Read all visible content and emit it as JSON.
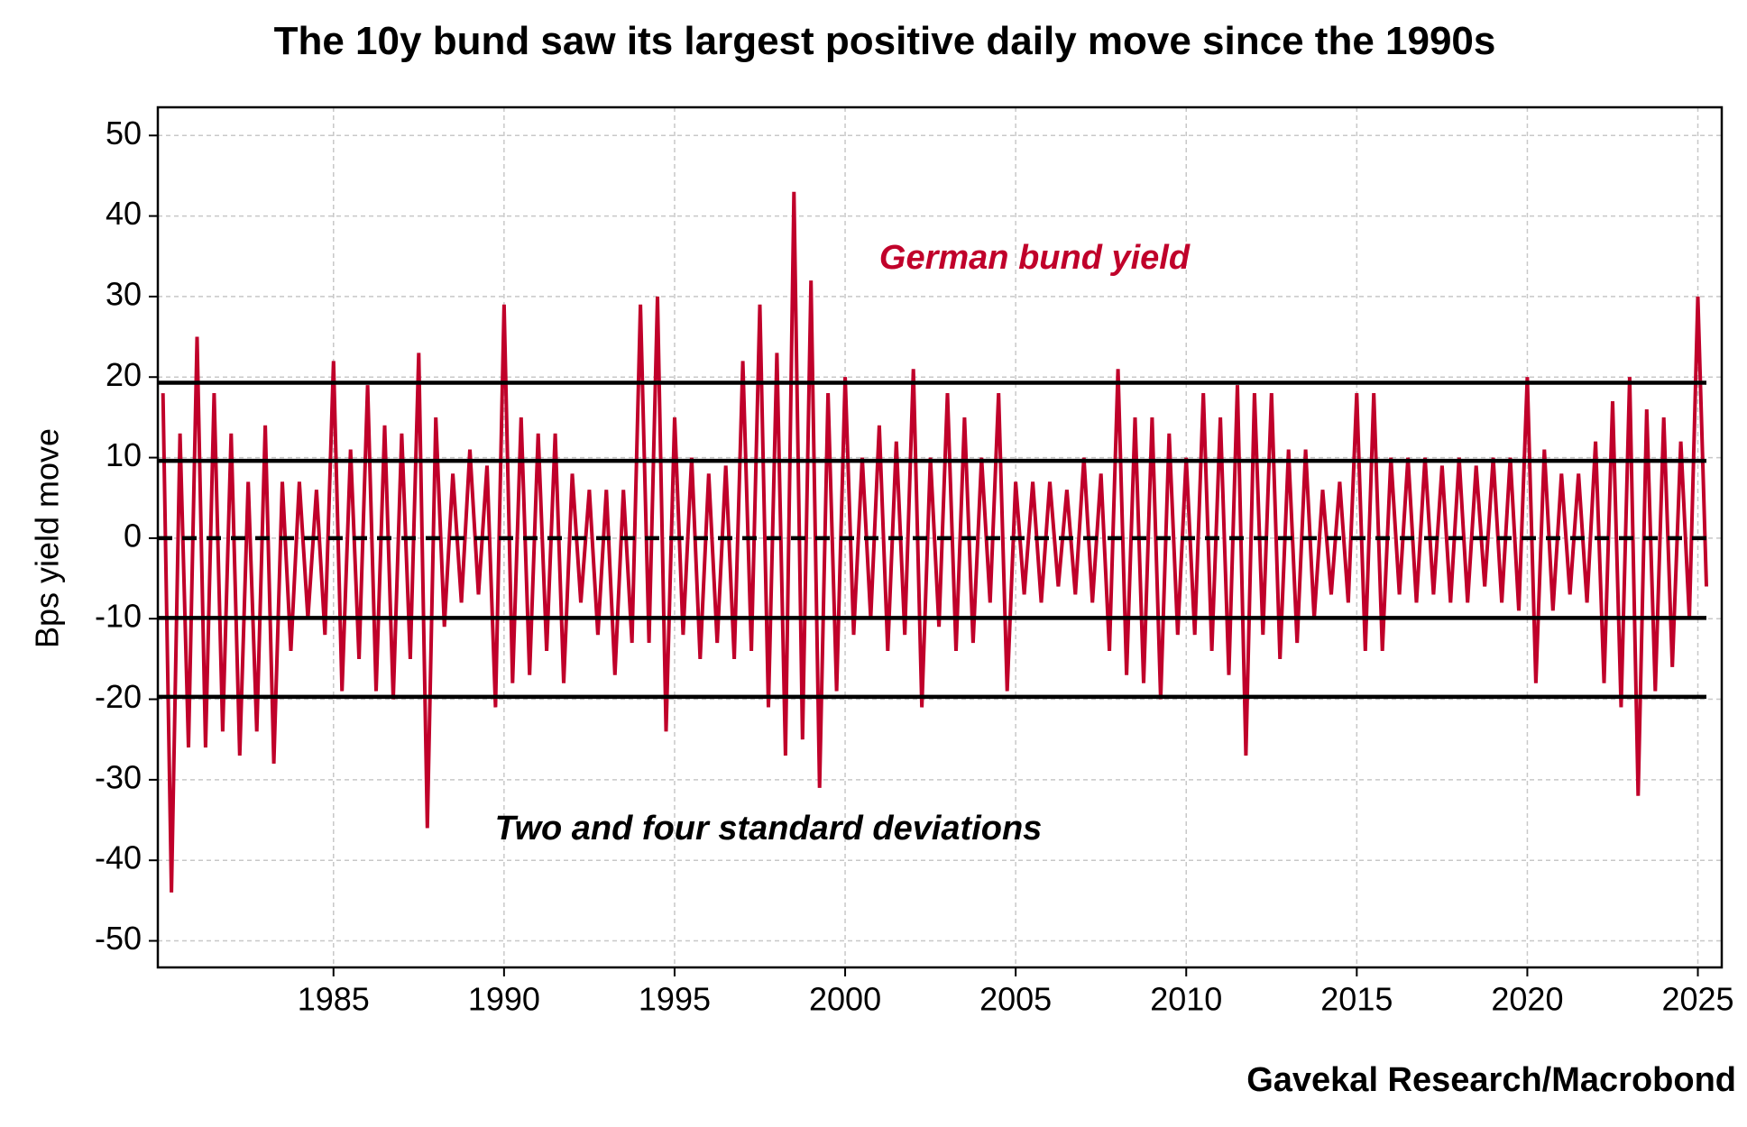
{
  "chart_data": {
    "type": "line",
    "title": "The 10y bund saw its largest positive daily move since the 1990s",
    "ylabel": "Bps yield move",
    "source": "Gavekal Research/Macrobond",
    "annotations": [
      {
        "text": "German bund yield",
        "color": "#c0002a"
      },
      {
        "text": "Two and four standard deviations",
        "color": "#000000"
      }
    ],
    "xlim": [
      1979.85,
      2025.7
    ],
    "ylim": [
      -53.3,
      53.5
    ],
    "xticks": [
      1985,
      1990,
      1995,
      2000,
      2005,
      2010,
      2015,
      2020,
      2025
    ],
    "yticks": [
      50,
      40,
      30,
      20,
      10,
      0,
      -10,
      -20,
      -30,
      -40,
      -50
    ],
    "grid": true,
    "hlines": [
      {
        "value": 19.3,
        "style": "solid"
      },
      {
        "value": 9.6,
        "style": "solid"
      },
      {
        "value": 0,
        "style": "dashed"
      },
      {
        "value": -9.9,
        "style": "solid"
      },
      {
        "value": -19.7,
        "style": "solid"
      }
    ],
    "x": [
      1980,
      1980.25,
      1980.5,
      1980.75,
      1981,
      1981.25,
      1981.5,
      1981.75,
      1982,
      1982.25,
      1982.5,
      1982.75,
      1983,
      1983.25,
      1983.5,
      1983.75,
      1984,
      1984.25,
      1984.5,
      1984.75,
      1985,
      1985.25,
      1985.5,
      1985.75,
      1986,
      1986.25,
      1986.5,
      1986.75,
      1987,
      1987.25,
      1987.5,
      1987.75,
      1988,
      1988.25,
      1988.5,
      1988.75,
      1989,
      1989.25,
      1989.5,
      1989.75,
      1990,
      1990.25,
      1990.5,
      1990.75,
      1991,
      1991.25,
      1991.5,
      1991.75,
      1992,
      1992.25,
      1992.5,
      1992.75,
      1993,
      1993.25,
      1993.5,
      1993.75,
      1994,
      1994.25,
      1994.5,
      1994.75,
      1995,
      1995.25,
      1995.5,
      1995.75,
      1996,
      1996.25,
      1996.5,
      1996.75,
      1997,
      1997.25,
      1997.5,
      1997.75,
      1998,
      1998.25,
      1998.5,
      1998.75,
      1999,
      1999.25,
      1999.5,
      1999.75,
      2000,
      2000.25,
      2000.5,
      2000.75,
      2001,
      2001.25,
      2001.5,
      2001.75,
      2002,
      2002.25,
      2002.5,
      2002.75,
      2003,
      2003.25,
      2003.5,
      2003.75,
      2004,
      2004.25,
      2004.5,
      2004.75,
      2005,
      2005.25,
      2005.5,
      2005.75,
      2006,
      2006.25,
      2006.5,
      2006.75,
      2007,
      2007.25,
      2007.5,
      2007.75,
      2008,
      2008.25,
      2008.5,
      2008.75,
      2009,
      2009.25,
      2009.5,
      2009.75,
      2010,
      2010.25,
      2010.5,
      2010.75,
      2011,
      2011.25,
      2011.5,
      2011.75,
      2012,
      2012.25,
      2012.5,
      2012.75,
      2013,
      2013.25,
      2013.5,
      2013.75,
      2014,
      2014.25,
      2014.5,
      2014.75,
      2015,
      2015.25,
      2015.5,
      2015.75,
      2016,
      2016.25,
      2016.5,
      2016.75,
      2017,
      2017.25,
      2017.5,
      2017.75,
      2018,
      2018.25,
      2018.5,
      2018.75,
      2019,
      2019.25,
      2019.5,
      2019.75,
      2020,
      2020.25,
      2020.5,
      2020.75,
      2021,
      2021.25,
      2021.5,
      2021.75,
      2022,
      2022.25,
      2022.5,
      2022.75,
      2023,
      2023.25,
      2023.5,
      2023.75,
      2024,
      2024.25,
      2024.5,
      2024.75,
      2025,
      2025.25
    ],
    "series": [
      {
        "name": "German bund yield",
        "color": "#c0002a",
        "values": [
          18,
          -44,
          13,
          -26,
          25,
          -26,
          18,
          -24,
          13,
          -27,
          7,
          -24,
          14,
          -28,
          7,
          -14,
          7,
          -10,
          6,
          -12,
          22,
          -19,
          11,
          -15,
          19,
          -19,
          14,
          -20,
          13,
          -15,
          23,
          -36,
          15,
          -11,
          8,
          -8,
          11,
          -7,
          9,
          -21,
          29,
          -18,
          15,
          -17,
          13,
          -14,
          13,
          -18,
          8,
          -8,
          6,
          -12,
          6,
          -17,
          6,
          -13,
          29,
          -13,
          30,
          -24,
          15,
          -12,
          10,
          -15,
          8,
          -13,
          9,
          -15,
          22,
          -14,
          29,
          -21,
          23,
          -27,
          43,
          -25,
          32,
          -31,
          18,
          -19,
          20,
          -12,
          10,
          -10,
          14,
          -14,
          12,
          -12,
          21,
          -21,
          10,
          -11,
          18,
          -14,
          15,
          -13,
          10,
          -8,
          18,
          -19,
          7,
          -7,
          7,
          -8,
          7,
          -6,
          6,
          -7,
          10,
          -8,
          8,
          -14,
          21,
          -17,
          15,
          -18,
          15,
          -20,
          13,
          -12,
          10,
          -12,
          18,
          -14,
          15,
          -17,
          19,
          -27,
          18,
          -12,
          18,
          -15,
          11,
          -13,
          11,
          -10,
          6,
          -7,
          7,
          -8,
          18,
          -14,
          18,
          -14,
          10,
          -7,
          10,
          -8,
          10,
          -7,
          9,
          -8,
          10,
          -8,
          9,
          -6,
          10,
          -8,
          10,
          -9,
          20,
          -18,
          11,
          -9,
          8,
          -7,
          8,
          -8,
          12,
          -18,
          17,
          -21,
          20,
          -32,
          16,
          -19,
          15,
          -16,
          12,
          -10,
          30,
          -6
        ]
      }
    ]
  }
}
